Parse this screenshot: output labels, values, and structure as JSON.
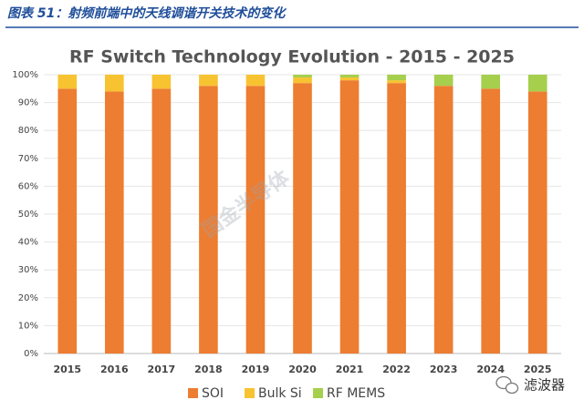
{
  "figure_caption": "图表 51：射频前端中的天线调谐开关技术的变化",
  "watermark": "国金半导体",
  "source_badge": "滤波器",
  "chart_data": {
    "type": "stacked_bar",
    "title": "RF Switch Technology Evolution - 2015 - 2025",
    "categories": [
      "2015",
      "2016",
      "2017",
      "2018",
      "2019",
      "2020",
      "2021",
      "2022",
      "2023",
      "2024",
      "2025"
    ],
    "series": [
      {
        "name": "SOI",
        "color": "#ed7d31",
        "values": [
          95,
          94,
          95,
          96,
          96,
          97,
          98,
          97,
          96,
          95,
          94
        ]
      },
      {
        "name": "Bulk Si",
        "color": "#f7c331",
        "values": [
          5,
          6,
          5,
          4,
          4,
          2,
          1,
          1,
          0,
          0,
          0
        ]
      },
      {
        "name": "RF MEMS",
        "color": "#a5cf4c",
        "values": [
          0,
          0,
          0,
          0,
          0,
          1,
          1,
          2,
          4,
          5,
          6
        ]
      }
    ],
    "ylim": [
      0,
      100
    ],
    "yticks": [
      {
        "value": 0,
        "label": "0%"
      },
      {
        "value": 10,
        "label": "10%"
      },
      {
        "value": 20,
        "label": "20%"
      },
      {
        "value": 30,
        "label": "30%"
      },
      {
        "value": 40,
        "label": "40%"
      },
      {
        "value": 50,
        "label": "50%"
      },
      {
        "value": 60,
        "label": "60%"
      },
      {
        "value": 70,
        "label": "70%"
      },
      {
        "value": 80,
        "label": "80%"
      },
      {
        "value": 90,
        "label": "90%"
      },
      {
        "value": 100,
        "label": "100%"
      }
    ],
    "grid": true,
    "legend": "bottom"
  }
}
